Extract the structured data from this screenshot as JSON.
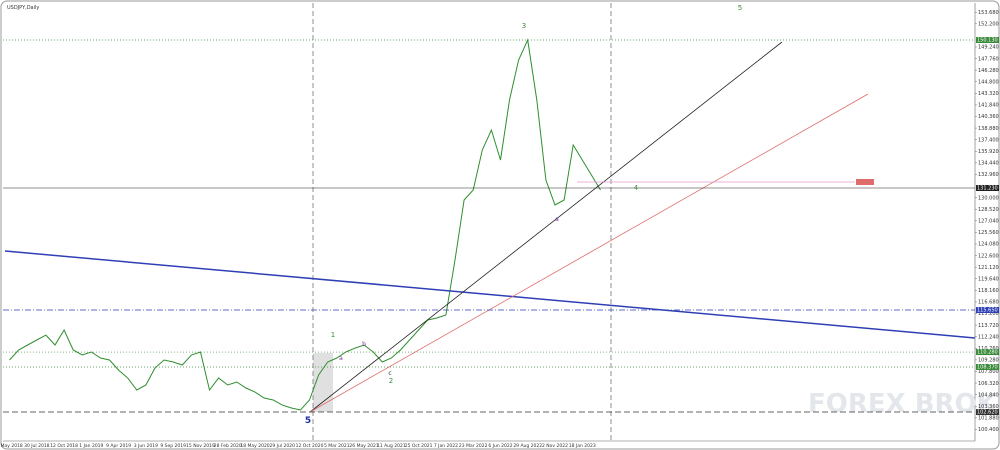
{
  "chart_data": {
    "type": "line",
    "title": "USDJPY,Daily",
    "color": "#2f8f2f",
    "categories": [
      "1 May 2018",
      null,
      null,
      "30 Jul 2018",
      null,
      null,
      "12 Oct 2018",
      null,
      null,
      "1 Jan 2019",
      null,
      null,
      "9 Apr 2019",
      null,
      null,
      "3 Jun 2019",
      null,
      null,
      "9 Sep 2019",
      null,
      null,
      "15 Nov 2019",
      null,
      null,
      "28 Feb 2020",
      null,
      null,
      "18 May 2020",
      null,
      null,
      "29 Jul 2020",
      null,
      null,
      "12 Oct 2020",
      null,
      null,
      "5 Mar 2021",
      null,
      null,
      "26 May 2021",
      null,
      null,
      "11 Aug 2021",
      null,
      null,
      "25 Oct 2021",
      null,
      null,
      "7 Jan 2022",
      null,
      null,
      "23 Mar 2022",
      null,
      null,
      "6 Jun 2022",
      null,
      null,
      "29 Aug 2022",
      null,
      null,
      "2 Nov 2022",
      null,
      null,
      "18 Jan 2023",
      null,
      null
    ],
    "values": [
      109.26,
      110.54,
      111.18,
      111.82,
      112.45,
      111.18,
      113.09,
      110.54,
      109.9,
      110.28,
      109.52,
      109.26,
      107.98,
      106.96,
      105.43,
      106.07,
      108.24,
      109.26,
      109.01,
      108.62,
      109.9,
      110.28,
      105.43,
      106.96,
      106.07,
      106.45,
      105.69,
      105.17,
      104.41,
      104.15,
      103.51,
      103.13,
      102.88,
      104.15,
      107.35,
      109.01,
      109.52,
      110.28,
      110.79,
      111.18,
      110.28,
      109.01,
      109.52,
      110.54,
      111.82,
      113.09,
      114.37,
      114.63,
      115.01,
      122.03,
      129.7,
      130.97,
      136.08,
      138.64,
      134.8,
      142.47,
      147.58,
      150.13,
      142.47,
      132.25,
      129.06,
      129.7,
      136.72,
      134.8,
      132.89,
      130.97
    ],
    "ylim": [
      98.92,
      154.6
    ],
    "yticks": [
      {
        "value": 100.4,
        "label": "100.400"
      },
      {
        "value": 101.88,
        "label": "101.880"
      },
      {
        "value": 103.36,
        "label": "103.360"
      },
      {
        "value": 104.84,
        "label": "104.840"
      },
      {
        "value": 106.32,
        "label": "106.320"
      },
      {
        "value": 107.8,
        "label": "107.800"
      },
      {
        "value": 109.28,
        "label": "109.280"
      },
      {
        "value": 110.76,
        "label": "110.760"
      },
      {
        "value": 112.24,
        "label": "112.240"
      },
      {
        "value": 113.72,
        "label": "113.720"
      },
      {
        "value": 115.2,
        "label": "115.200"
      },
      {
        "value": 116.68,
        "label": "116.680"
      },
      {
        "value": 118.16,
        "label": "118.160"
      },
      {
        "value": 119.64,
        "label": "119.640"
      },
      {
        "value": 121.12,
        "label": "121.120"
      },
      {
        "value": 122.6,
        "label": "122.600"
      },
      {
        "value": 124.08,
        "label": "124.080"
      },
      {
        "value": 125.56,
        "label": "125.560"
      },
      {
        "value": 127.04,
        "label": "127.040"
      },
      {
        "value": 128.52,
        "label": "128.520"
      },
      {
        "value": 130,
        "label": "130.000"
      },
      {
        "value": 132.96,
        "label": "132.960"
      },
      {
        "value": 134.44,
        "label": "134.440"
      },
      {
        "value": 135.92,
        "label": "135.920"
      },
      {
        "value": 137.4,
        "label": "137.400"
      },
      {
        "value": 138.88,
        "label": "138.880"
      },
      {
        "value": 140.36,
        "label": "140.360"
      },
      {
        "value": 141.84,
        "label": "141.840"
      },
      {
        "value": 143.32,
        "label": "143.320"
      },
      {
        "value": 144.8,
        "label": "144.800"
      },
      {
        "value": 146.28,
        "label": "146.280"
      },
      {
        "value": 147.76,
        "label": "147.760"
      },
      {
        "value": 149.24,
        "label": "149.240"
      },
      {
        "value": 152.2,
        "label": "152.200"
      },
      {
        "value": 153.68,
        "label": "153.680"
      }
    ],
    "price_levels": [
      {
        "value": 150.13,
        "label": "150.130",
        "color": "#3a8a3a",
        "style": "dotted"
      },
      {
        "value": 131.23,
        "label": "131.230",
        "color": "#222222",
        "style": "solid"
      },
      {
        "value": 115.65,
        "label": "115.650",
        "color": "#2e3fb5",
        "style": "dashdot"
      },
      {
        "value": 110.28,
        "label": "110.280",
        "color": "#3a8a3a",
        "style": "dotted"
      },
      {
        "value": 108.37,
        "label": "108.370",
        "color": "#3a8a3a",
        "style": "dotted"
      },
      {
        "value": 102.62,
        "label": "102.620",
        "color": "#333333",
        "style": "dashed"
      }
    ],
    "wave_labels": [
      "5",
      "1",
      "a",
      "b",
      "c",
      "2",
      "3",
      "a",
      "4",
      "5"
    ],
    "watermark": "FOREX BROKERS"
  }
}
